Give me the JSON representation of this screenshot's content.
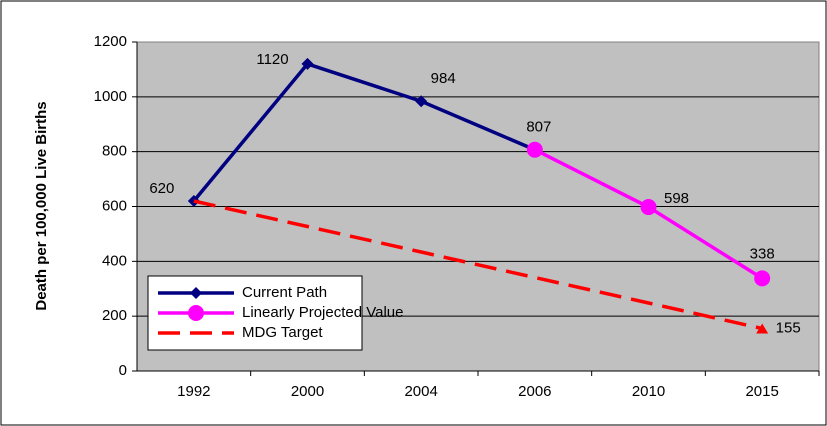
{
  "chart_data": {
    "type": "line",
    "y_label": "Death per 100,000 Live Births",
    "categories": [
      "1992",
      "2000",
      "2004",
      "2006",
      "2010",
      "2015"
    ],
    "series": [
      {
        "name": "Current Path",
        "color": "#000080",
        "marker": "diamond",
        "values": [
          620,
          1120,
          984,
          807,
          null,
          null
        ]
      },
      {
        "name": "Linearly Projected Value",
        "color": "#ff00ff",
        "marker": "circle",
        "values": [
          null,
          null,
          null,
          807,
          598,
          338
        ]
      },
      {
        "name": "MDG Target",
        "color": "#ff0000",
        "marker": "triangle",
        "dashed": true,
        "values": [
          620,
          527,
          434,
          341,
          248,
          155
        ]
      }
    ],
    "ylim": [
      0,
      1200
    ],
    "yticks": [
      0,
      200,
      400,
      600,
      800,
      1000,
      1200
    ],
    "grid": true
  }
}
